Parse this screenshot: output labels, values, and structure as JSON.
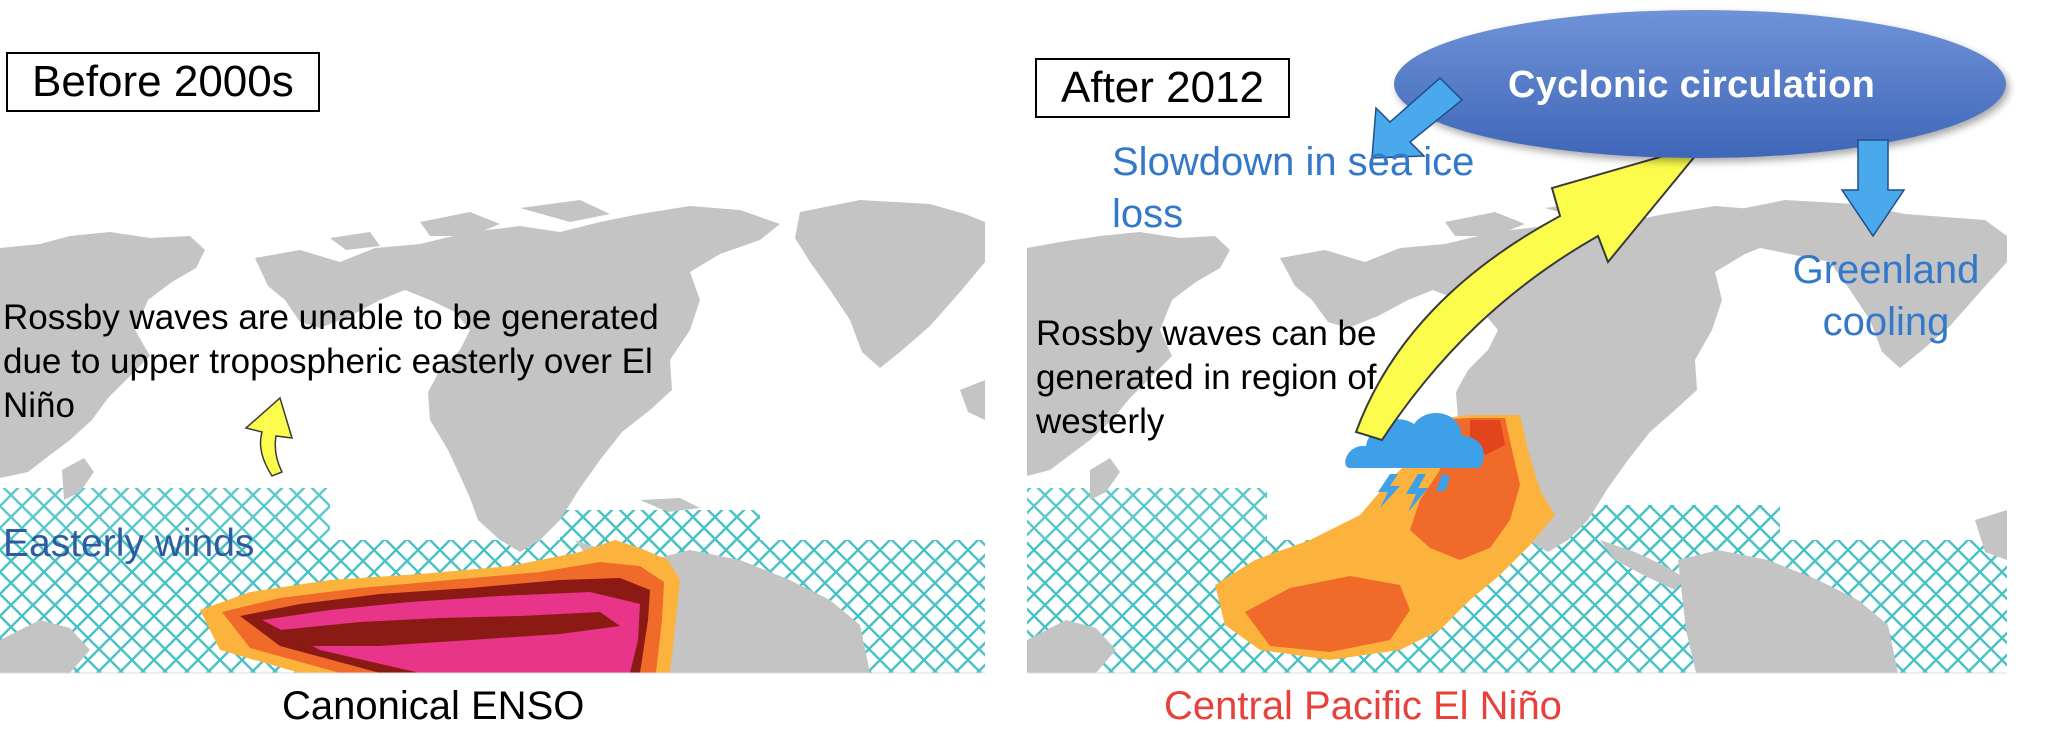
{
  "left_panel": {
    "era_label": "Before 2000s",
    "annotation": [
      "Rossby waves are unable to be generated",
      "due to upper tropospheric easterly over El",
      "Niño"
    ],
    "wind_label": "Easterly winds",
    "caption": "Canonical ENSO",
    "caption_color": "#000000"
  },
  "right_panel": {
    "era_label": "After 2012",
    "annotation": [
      "Rossby waves can be",
      "generated in region of",
      "westerly"
    ],
    "circulation_label": "Cyclonic circulation",
    "sea_ice_label": [
      "Slowdown in sea ice",
      "loss"
    ],
    "greenland_label": [
      "Greenland",
      "cooling"
    ],
    "caption": "Central Pacific El Niño",
    "caption_color": "#e8413b"
  },
  "colors": {
    "land": "#c4c4c4",
    "hatch": "#49c2c6",
    "label_blue": "#3478c9",
    "wind_blue": "#2e5aa0",
    "arrow_yellow": "#fbfc4b",
    "ellipse_blue": "#4f78c9",
    "anomaly_orange": "#fcb33d",
    "anomaly_red": "#f06a2a",
    "anomaly_darkred": "#8b1a14",
    "anomaly_pink": "#e8358a"
  }
}
